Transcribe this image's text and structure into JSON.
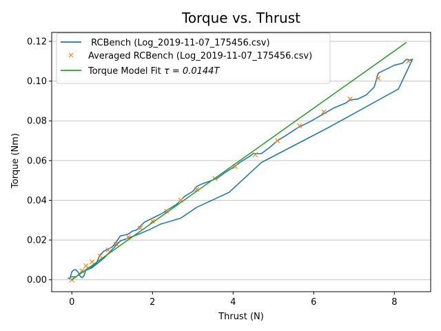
{
  "chart_data": {
    "type": "line",
    "title": "Torque vs. Thrust",
    "xlabel": "Thrust (N)",
    "ylabel": "Torque (Nm)",
    "xlim": [
      -0.5,
      8.9
    ],
    "ylim": [
      -0.006,
      0.1245
    ],
    "xticks": [
      0,
      2,
      4,
      6,
      8
    ],
    "yticks": [
      0.0,
      0.02,
      0.04,
      0.06,
      0.08,
      0.1,
      0.12
    ],
    "ytick_labels": [
      "0.00",
      "0.02",
      "0.04",
      "0.06",
      "0.08",
      "0.10",
      "0.12"
    ],
    "grid": "horizontal",
    "legend_position": "top-left",
    "series": [
      {
        "name": " RCBench (Log_2019-11-07_175456.csv)",
        "kind": "line",
        "color": "#1f77b4",
        "points": [
          [
            -0.1,
            0.001
          ],
          [
            -0.05,
            0.0005
          ],
          [
            0.0,
            0.004
          ],
          [
            0.05,
            0.005
          ],
          [
            0.1,
            0.005
          ],
          [
            0.15,
            0.004
          ],
          [
            0.2,
            0.002
          ],
          [
            0.25,
            0.001
          ],
          [
            0.3,
            0.002
          ],
          [
            0.35,
            0.005
          ],
          [
            0.4,
            0.006
          ],
          [
            0.5,
            0.0065
          ],
          [
            0.6,
            0.008
          ],
          [
            0.7,
            0.0125
          ],
          [
            0.8,
            0.0145
          ],
          [
            0.9,
            0.0155
          ],
          [
            1.0,
            0.0165
          ],
          [
            1.1,
            0.019
          ],
          [
            1.2,
            0.022
          ],
          [
            1.3,
            0.0225
          ],
          [
            1.4,
            0.023
          ],
          [
            1.5,
            0.0245
          ],
          [
            1.6,
            0.025
          ],
          [
            1.7,
            0.027
          ],
          [
            1.8,
            0.029
          ],
          [
            2.0,
            0.031
          ],
          [
            2.2,
            0.033
          ],
          [
            2.4,
            0.0355
          ],
          [
            2.6,
            0.038
          ],
          [
            2.8,
            0.042
          ],
          [
            3.0,
            0.0445
          ],
          [
            3.1,
            0.047
          ],
          [
            3.2,
            0.048
          ],
          [
            3.4,
            0.0495
          ],
          [
            3.6,
            0.051
          ],
          [
            3.8,
            0.054
          ],
          [
            4.0,
            0.0565
          ],
          [
            4.2,
            0.0595
          ],
          [
            4.4,
            0.062
          ],
          [
            4.5,
            0.0635
          ],
          [
            4.7,
            0.0635
          ],
          [
            4.9,
            0.0665
          ],
          [
            5.1,
            0.07
          ],
          [
            5.3,
            0.0725
          ],
          [
            5.6,
            0.0765
          ],
          [
            5.9,
            0.0795
          ],
          [
            6.2,
            0.083
          ],
          [
            6.5,
            0.0865
          ],
          [
            6.8,
            0.089
          ],
          [
            6.9,
            0.0905
          ],
          [
            7.1,
            0.091
          ],
          [
            7.3,
            0.093
          ],
          [
            7.5,
            0.097
          ],
          [
            7.6,
            0.104
          ],
          [
            7.8,
            0.106
          ],
          [
            8.0,
            0.108
          ],
          [
            8.2,
            0.109
          ],
          [
            8.3,
            0.111
          ],
          [
            8.4,
            0.1105
          ],
          [
            8.45,
            0.111
          ],
          [
            8.1,
            0.096
          ],
          [
            6.4,
            0.077
          ],
          [
            4.7,
            0.059
          ],
          [
            3.9,
            0.044
          ],
          [
            3.1,
            0.0365
          ],
          [
            2.7,
            0.031
          ],
          [
            2.2,
            0.028
          ],
          [
            1.9,
            0.025
          ],
          [
            1.6,
            0.0225
          ],
          [
            1.2,
            0.0195
          ],
          [
            0.8,
            0.011
          ],
          [
            0.5,
            0.006
          ],
          [
            0.25,
            0.004
          ],
          [
            0.1,
            0.0015
          ],
          [
            -0.05,
            0.0015
          ]
        ]
      },
      {
        "name": "Averaged RCBench (Log_2019-11-07_175456.csv)",
        "kind": "markers",
        "marker": "x",
        "color": "#ff7f0e",
        "points": [
          [
            0.0,
            0.0
          ],
          [
            0.25,
            0.0045
          ],
          [
            0.35,
            0.007
          ],
          [
            0.5,
            0.009
          ],
          [
            0.7,
            0.012
          ],
          [
            0.9,
            0.015
          ],
          [
            1.1,
            0.018
          ],
          [
            1.4,
            0.0215
          ],
          [
            1.7,
            0.026
          ],
          [
            2.0,
            0.0295
          ],
          [
            2.35,
            0.0345
          ],
          [
            2.7,
            0.04
          ],
          [
            3.1,
            0.0455
          ],
          [
            3.55,
            0.051
          ],
          [
            4.05,
            0.057
          ],
          [
            4.55,
            0.063
          ],
          [
            5.1,
            0.07
          ],
          [
            5.65,
            0.0775
          ],
          [
            6.25,
            0.0845
          ],
          [
            6.9,
            0.091
          ],
          [
            7.6,
            0.1015
          ],
          [
            8.35,
            0.11
          ]
        ]
      },
      {
        "name": "Torque Model Fit",
        "label_math": "τ = 0.0144T",
        "kind": "line",
        "color": "#2ca02c",
        "points": [
          [
            0.0,
            0.0
          ],
          [
            8.3,
            0.1195
          ]
        ]
      }
    ]
  }
}
